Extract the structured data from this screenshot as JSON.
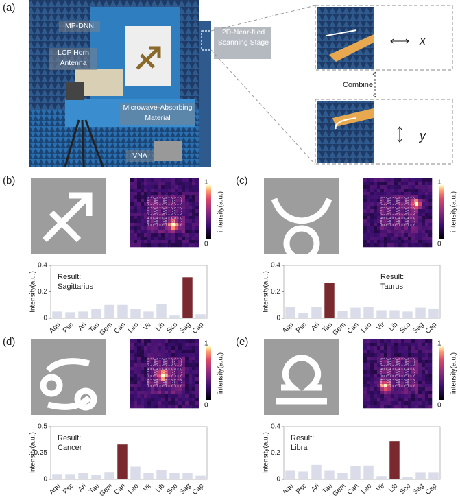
{
  "panel_a": {
    "label": "(a)",
    "mp_dnn": "MP-DNN",
    "horn": "LCP Horn Antenna",
    "absorber": "Microwave-Absorbing Material",
    "vna": "VNA",
    "stage": "2D-Near-filed Scanning Stage",
    "combine": "Combine",
    "x": "x",
    "y": "y"
  },
  "chart_data": [
    {
      "type": "bar",
      "label": "(b)",
      "colorbar_max": "1",
      "colorbar_min": "0",
      "colorbar_label": "intensity(a.u.)",
      "ylabel": "Intensity(a.u.)",
      "result_label": "Result:",
      "result": "Sagittarius",
      "result_side": "left",
      "categories": [
        "Aqu",
        "Psc",
        "Ari",
        "Tau",
        "Gem",
        "Can",
        "Leo",
        "Vir",
        "Lib",
        "Sco",
        "Sag",
        "Cap"
      ],
      "values": [
        0.05,
        0.045,
        0.05,
        0.07,
        0.1,
        0.1,
        0.07,
        0.05,
        0.105,
        0.02,
        0.31,
        0.03
      ],
      "colors": [
        "#dadde9",
        "#dadde9",
        "#dadde9",
        "#dadde9",
        "#dadde9",
        "#dadde9",
        "#dadde9",
        "#dadde9",
        "#dadde9",
        "#dadde9",
        "#7a2a2e",
        "#dadde9"
      ],
      "ylim": [
        0,
        0.4
      ],
      "yticks": [
        0,
        0.2,
        0.4
      ]
    },
    {
      "type": "bar",
      "label": "(c)",
      "colorbar_max": "1",
      "colorbar_min": "0",
      "colorbar_label": "intensity(a.u.)",
      "ylabel": "Intensity(a.u.)",
      "result_label": "Result:",
      "result": "Taurus",
      "result_side": "right",
      "categories": [
        "Aqu",
        "Psc",
        "Ari",
        "Tau",
        "Gem",
        "Can",
        "Leo",
        "Vir",
        "Lib",
        "Sco",
        "Sag",
        "Cap"
      ],
      "values": [
        0.085,
        0.04,
        0.085,
        0.27,
        0.055,
        0.08,
        0.085,
        0.06,
        0.06,
        0.05,
        0.08,
        0.07
      ],
      "colors": [
        "#dadde9",
        "#dadde9",
        "#dadde9",
        "#7a2a2e",
        "#dadde9",
        "#dadde9",
        "#dadde9",
        "#dadde9",
        "#dadde9",
        "#dadde9",
        "#dadde9",
        "#dadde9"
      ],
      "ylim": [
        0,
        0.4
      ],
      "yticks": [
        0,
        0.2,
        0.4
      ]
    },
    {
      "type": "bar",
      "label": "(d)",
      "colorbar_max": "1",
      "colorbar_min": "0",
      "colorbar_label": "intensity(a.u.)",
      "ylabel": "Intensity(a.u.)",
      "result_label": "Result:",
      "result": "Cancer",
      "result_side": "left",
      "categories": [
        "Aqu",
        "Psc",
        "Ari",
        "Tau",
        "Gem",
        "Can",
        "Leo",
        "Vir",
        "Lib",
        "Sco",
        "Sag",
        "Cap"
      ],
      "values": [
        0.05,
        0.05,
        0.06,
        0.04,
        0.07,
        0.33,
        0.12,
        0.06,
        0.09,
        0.06,
        0.06,
        0.035
      ],
      "colors": [
        "#dadde9",
        "#dadde9",
        "#dadde9",
        "#dadde9",
        "#dadde9",
        "#7a2a2e",
        "#dadde9",
        "#dadde9",
        "#dadde9",
        "#dadde9",
        "#dadde9",
        "#dadde9"
      ],
      "ylim": [
        0,
        0.5
      ],
      "yticks": [
        0,
        0.25,
        0.5
      ]
    },
    {
      "type": "bar",
      "label": "(e)",
      "colorbar_max": "1",
      "colorbar_min": "0",
      "colorbar_label": "intensity(a.u.)",
      "ylabel": "Intensity(a.u.)",
      "result_label": "Result:",
      "result": "Libra",
      "result_side": "left",
      "categories": [
        "Aqu",
        "Psc",
        "Ari",
        "Tau",
        "Gem",
        "Can",
        "Leo",
        "Vir",
        "Lib",
        "Sco",
        "Sag",
        "Cap"
      ],
      "values": [
        0.065,
        0.06,
        0.11,
        0.065,
        0.05,
        0.1,
        0.105,
        0.025,
        0.29,
        0.02,
        0.055,
        0.055
      ],
      "colors": [
        "#dadde9",
        "#dadde9",
        "#dadde9",
        "#dadde9",
        "#dadde9",
        "#dadde9",
        "#dadde9",
        "#dadde9",
        "#7a2a2e",
        "#dadde9",
        "#dadde9",
        "#dadde9"
      ],
      "ylim": [
        0,
        0.4
      ],
      "yticks": [
        0,
        0.2,
        0.4
      ]
    }
  ]
}
